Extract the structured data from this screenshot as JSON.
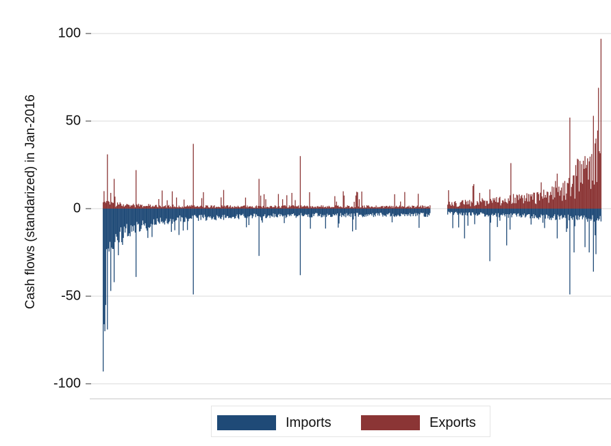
{
  "chart_data": {
    "type": "bar",
    "title": "",
    "ylabel": "Cash flows (standarized) in Jan-2016",
    "xlabel": "",
    "ylim": [
      -107,
      103
    ],
    "yticks": [
      100,
      50,
      0,
      -50,
      -100
    ],
    "ytick_labels": [
      "100",
      "50",
      "0",
      "-50",
      "-100"
    ],
    "grid": true,
    "legend_position": "bottom-center",
    "n_observations": 572,
    "gap_after_observation": 389,
    "gap_length": 20,
    "series": [
      {
        "name": "Imports",
        "color": "#1f4a77",
        "description": "negative standardized cash flows, sorted with largest magnitudes at left",
        "highlighted": [
          {
            "obs": 1,
            "value": -93
          },
          {
            "obs": 2,
            "value": -66
          },
          {
            "obs": 3,
            "value": -70
          },
          {
            "obs": 4,
            "value": -55
          },
          {
            "obs": 6,
            "value": -69
          },
          {
            "obs": 10,
            "value": -47
          },
          {
            "obs": 14,
            "value": -42
          },
          {
            "obs": 40,
            "value": -39
          },
          {
            "obs": 108,
            "value": -49
          },
          {
            "obs": 186,
            "value": -27
          },
          {
            "obs": 235,
            "value": -38
          },
          {
            "obs": 297,
            "value": -13
          },
          {
            "obs": 410,
            "value": -17
          },
          {
            "obs": 440,
            "value": -30
          },
          {
            "obs": 460,
            "value": -21
          },
          {
            "obs": 520,
            "value": -17
          },
          {
            "obs": 535,
            "value": -49
          },
          {
            "obs": 540,
            "value": -25
          },
          {
            "obs": 553,
            "value": -22
          },
          {
            "obs": 558,
            "value": -25
          },
          {
            "obs": 563,
            "value": -36
          },
          {
            "obs": 566,
            "value": -26
          }
        ]
      },
      {
        "name": "Exports",
        "color": "#8b3535",
        "description": "positive standardized cash flows, sorted with largest magnitudes at right",
        "highlighted": [
          {
            "obs": 2,
            "value": 10
          },
          {
            "obs": 6,
            "value": 31
          },
          {
            "obs": 10,
            "value": 9
          },
          {
            "obs": 14,
            "value": 17
          },
          {
            "obs": 40,
            "value": 22
          },
          {
            "obs": 108,
            "value": 37
          },
          {
            "obs": 186,
            "value": 17
          },
          {
            "obs": 235,
            "value": 30
          },
          {
            "obs": 420,
            "value": 13
          },
          {
            "obs": 440,
            "value": 11
          },
          {
            "obs": 465,
            "value": 26
          },
          {
            "obs": 520,
            "value": 20
          },
          {
            "obs": 535,
            "value": 52
          },
          {
            "obs": 540,
            "value": 19
          },
          {
            "obs": 545,
            "value": 28
          },
          {
            "obs": 553,
            "value": 30
          },
          {
            "obs": 558,
            "value": 27
          },
          {
            "obs": 563,
            "value": 53
          },
          {
            "obs": 566,
            "value": 40
          },
          {
            "obs": 569,
            "value": 69
          },
          {
            "obs": 572,
            "value": 97
          }
        ]
      }
    ]
  },
  "legend": {
    "items": [
      {
        "label": "Imports",
        "color": "#1f4a77"
      },
      {
        "label": "Exports",
        "color": "#8b3535"
      }
    ]
  }
}
